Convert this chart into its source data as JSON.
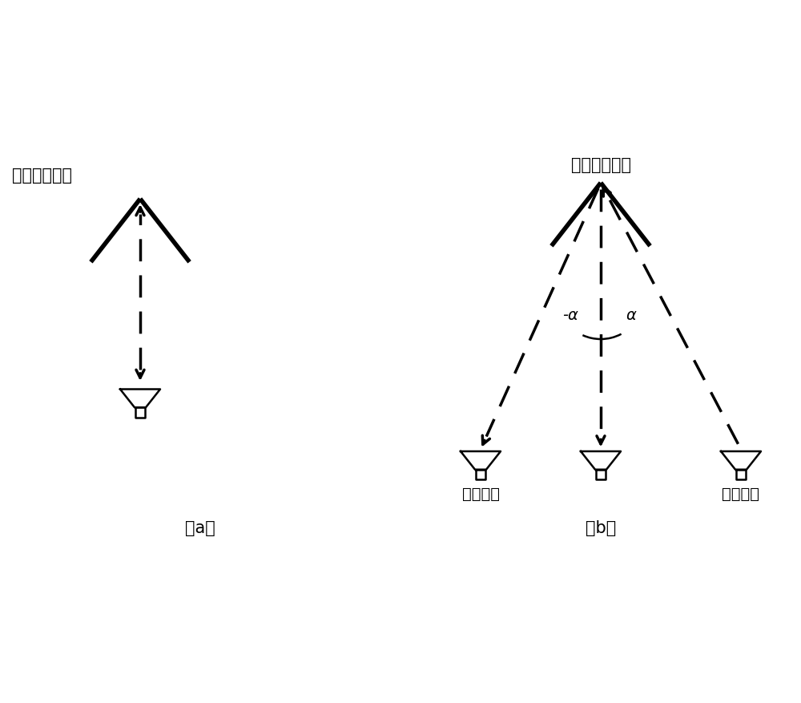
{
  "bg_color": "#ffffff",
  "line_color": "#000000",
  "fig_width": 10.0,
  "fig_height": 8.78,
  "label_a": "（a）",
  "label_b": "（b）",
  "title_a": "二面角反射器",
  "title_b": "二面角反射器",
  "label_rx": "接收天线",
  "label_tx": "发射天线",
  "angle_neg": "-α",
  "angle_pos": "α"
}
